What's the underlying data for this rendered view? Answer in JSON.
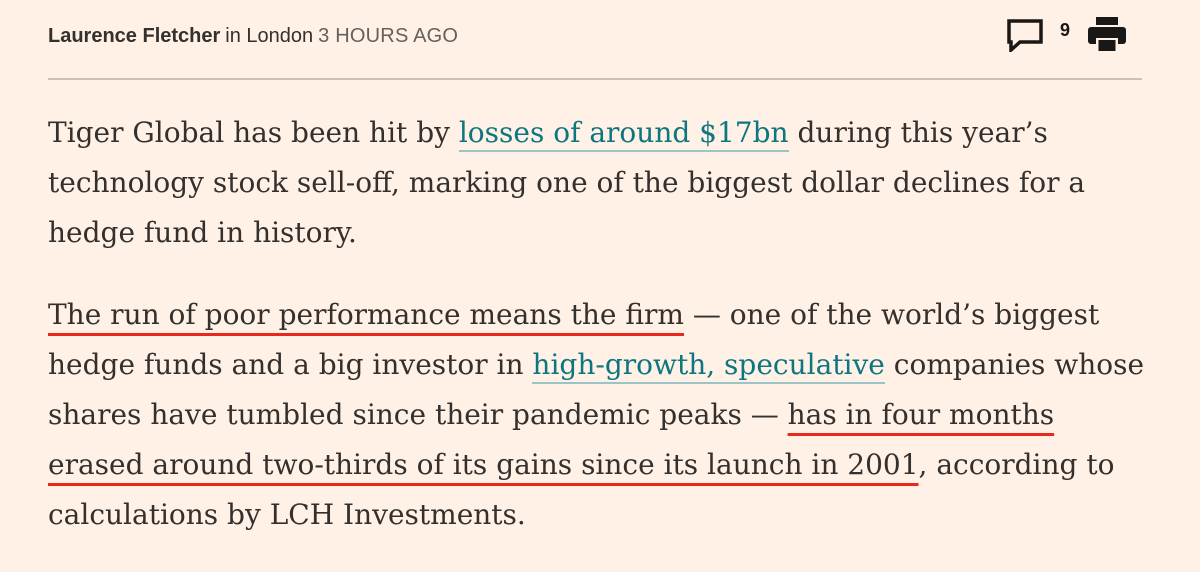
{
  "byline": {
    "author": "Laurence Fletcher",
    "location": "in London",
    "time": "3 HOURS AGO"
  },
  "tools": {
    "comments_count": "9",
    "comments_icon": "speech-bubble-icon",
    "print_icon": "printer-icon"
  },
  "colors": {
    "background": "#fff1e5",
    "text": "#33302e",
    "link_teal": "#0d7680",
    "link_blue": "#0f5499",
    "highlight_underline": "#e8281c"
  },
  "article": {
    "p1": {
      "text_before": "Tiger Global has been hit by ",
      "link": "losses of around $17bn",
      "text_after": " during this year’s technology stock sell-off, marking one of the biggest dollar declines for a hedge fund in history."
    },
    "p2": {
      "highlight1": "The run of poor performance means the firm",
      "text_a": " — one of the world’s biggest hedge funds and a big investor in ",
      "link": "high-growth, speculative",
      "text_b": " companies whose shares have tumbled since their pandemic peaks — ",
      "highlight2": "has in four months erased around two-thirds of its gains since its launch in 2001",
      "text_c": ", according to calculations by LCH Investments."
    }
  }
}
